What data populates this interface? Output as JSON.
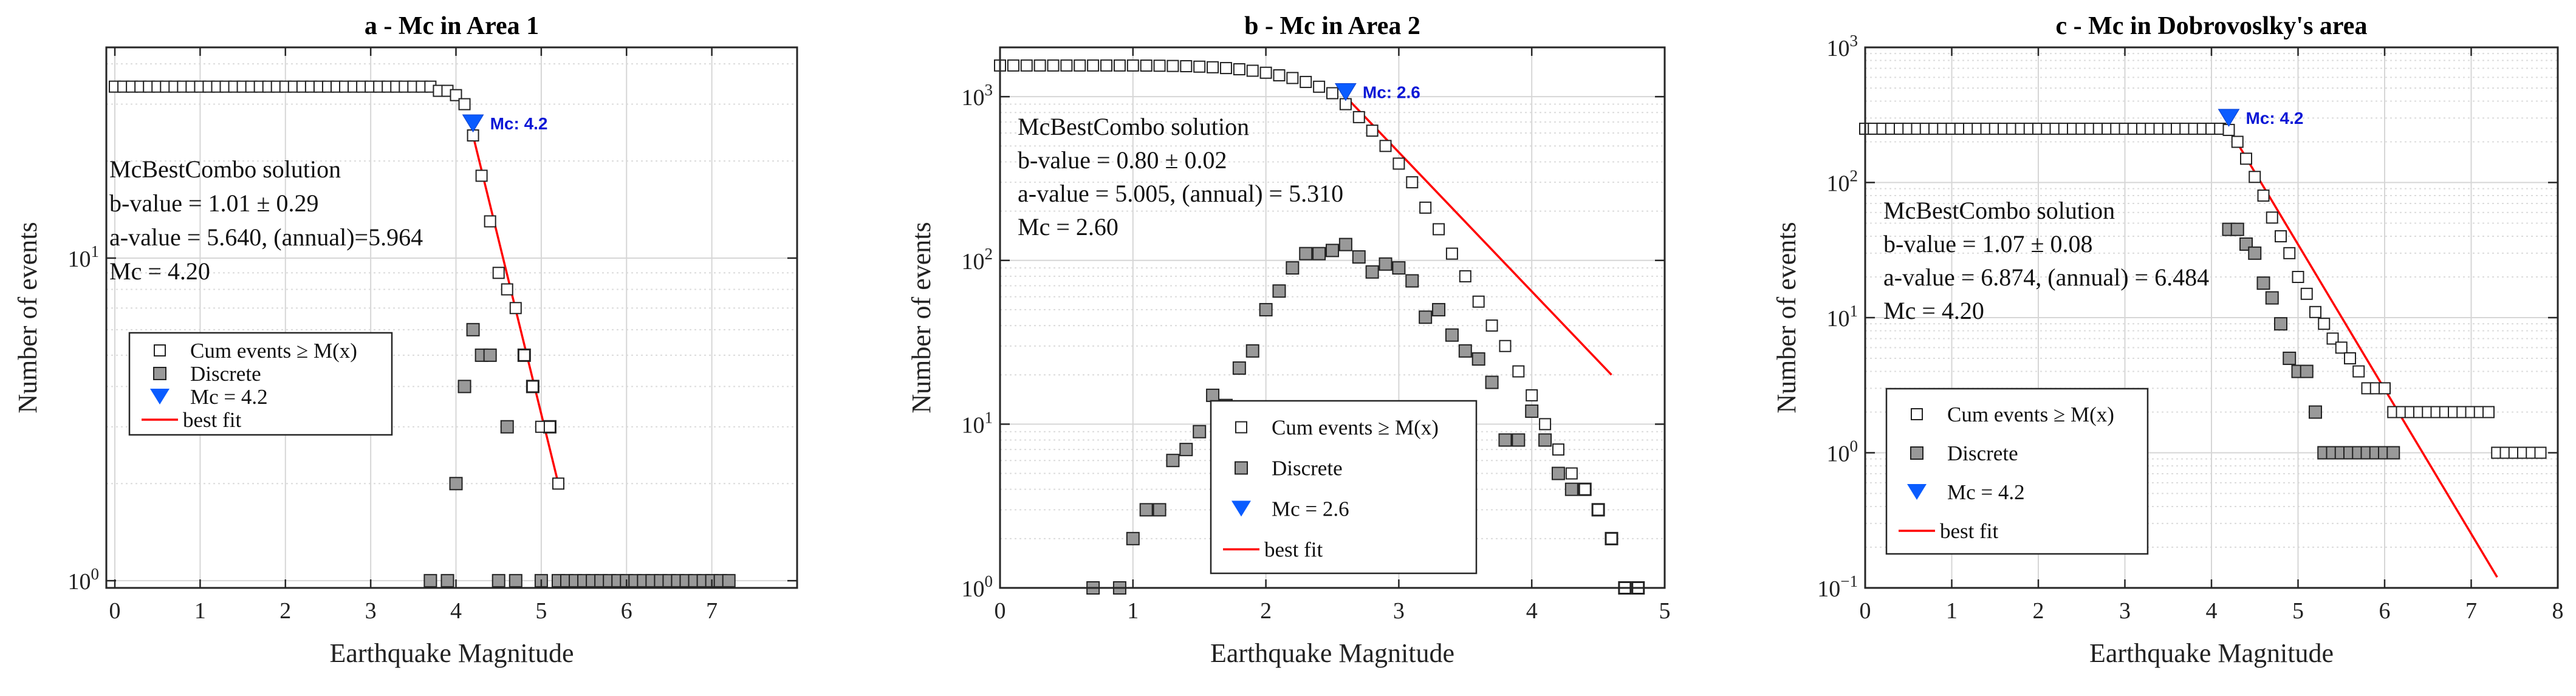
{
  "chart_data": [
    {
      "type": "scatter",
      "title": "a - Mc in Area 1",
      "xlabel": "Earthquake Magnitude",
      "ylabel": "Number of events",
      "xlim": [
        -0.1,
        8.0
      ],
      "xticks": [
        0,
        1,
        2,
        3,
        4,
        5,
        6,
        7
      ],
      "yscale": "log",
      "ylim": [
        0.95,
        45
      ],
      "yticks": [
        1,
        10
      ],
      "ytick_labels": [
        {
          "base": "10",
          "exp": "0"
        },
        {
          "base": "10",
          "exp": "1"
        }
      ],
      "grid": true,
      "series": [
        {
          "name": "Cum events ≥ M(x)",
          "marker": "open-square",
          "x": [
            0.0,
            0.1,
            0.2,
            0.3,
            0.4,
            0.5,
            0.6,
            0.7,
            0.8,
            0.9,
            1.0,
            1.1,
            1.2,
            1.3,
            1.4,
            1.5,
            1.6,
            1.7,
            1.8,
            1.9,
            2.0,
            2.1,
            2.2,
            2.3,
            2.4,
            2.5,
            2.6,
            2.7,
            2.8,
            2.9,
            3.0,
            3.1,
            3.2,
            3.3,
            3.4,
            3.5,
            3.6,
            3.7,
            3.8,
            3.9,
            4.0,
            4.1,
            4.2,
            4.3,
            4.4,
            4.5,
            4.6,
            4.7,
            4.8,
            4.9,
            5.0,
            5.1,
            5.2
          ],
          "y": [
            34,
            34,
            34,
            34,
            34,
            34,
            34,
            34,
            34,
            34,
            34,
            34,
            34,
            34,
            34,
            34,
            34,
            34,
            34,
            34,
            34,
            34,
            34,
            34,
            34,
            34,
            34,
            34,
            34,
            34,
            34,
            34,
            34,
            34,
            34,
            34,
            34,
            34,
            33,
            33,
            32,
            30,
            24,
            18,
            13,
            9,
            8,
            7,
            5,
            4,
            3,
            3,
            2
          ]
        },
        {
          "name": "Discrete",
          "marker": "filled-square",
          "x": [
            3.7,
            3.9,
            4.0,
            4.1,
            4.2,
            4.3,
            4.4,
            4.5,
            4.6,
            4.7,
            4.8,
            4.9,
            5.0,
            5.1,
            5.2,
            5.3,
            5.4,
            5.5,
            5.6,
            5.7,
            5.8,
            5.9,
            6.0,
            6.1,
            6.2,
            6.3,
            6.4,
            6.5,
            6.6,
            6.7,
            6.8,
            6.9,
            7.0,
            7.1,
            7.2
          ],
          "y": [
            1,
            1,
            2,
            4,
            6,
            5,
            5,
            1,
            3,
            1,
            5,
            4,
            1,
            3,
            1,
            1,
            1,
            1,
            1,
            1,
            1,
            1,
            1,
            1,
            1,
            1,
            1,
            1,
            1,
            1,
            1,
            1,
            1,
            1,
            1
          ]
        }
      ],
      "mc": {
        "x": 4.2,
        "label": "Mc: 4.2"
      },
      "best_fit": {
        "x": [
          4.2,
          5.2
        ],
        "y": [
          24,
          2
        ]
      },
      "annotation": [
        "McBestCombo solution",
        "b-value = 1.01 ± 0.29",
        "a-value = 5.640, (annual)=5.964",
        "Mc = 4.20"
      ],
      "legend": [
        "Cum events ≥ M(x)",
        "Discrete",
        "Mc = 4.2",
        "best fit"
      ]
    },
    {
      "type": "scatter",
      "title": "b - Mc in Area 2",
      "xlabel": "Earthquake Magnitude",
      "ylabel": "Number of events",
      "xlim": [
        0,
        5
      ],
      "xticks": [
        0,
        1,
        2,
        3,
        4,
        5
      ],
      "yscale": "log",
      "ylim": [
        1,
        2000
      ],
      "yticks": [
        1,
        10,
        100,
        1000
      ],
      "ytick_labels": [
        {
          "base": "10",
          "exp": "0"
        },
        {
          "base": "10",
          "exp": "1"
        },
        {
          "base": "10",
          "exp": "2"
        },
        {
          "base": "10",
          "exp": "3"
        }
      ],
      "grid": true,
      "series": [
        {
          "name": "Cum events ≥ M(x)",
          "marker": "open-square",
          "x": [
            0.0,
            0.1,
            0.2,
            0.3,
            0.4,
            0.5,
            0.6,
            0.7,
            0.8,
            0.9,
            1.0,
            1.1,
            1.2,
            1.3,
            1.4,
            1.5,
            1.6,
            1.7,
            1.8,
            1.9,
            2.0,
            2.1,
            2.2,
            2.3,
            2.4,
            2.5,
            2.6,
            2.7,
            2.8,
            2.9,
            3.0,
            3.1,
            3.2,
            3.3,
            3.4,
            3.5,
            3.6,
            3.7,
            3.8,
            3.9,
            4.0,
            4.1,
            4.2,
            4.3,
            4.4,
            4.5,
            4.6,
            4.7,
            4.8
          ],
          "y": [
            1550,
            1550,
            1550,
            1550,
            1550,
            1550,
            1550,
            1550,
            1550,
            1550,
            1550,
            1548,
            1545,
            1540,
            1535,
            1525,
            1512,
            1495,
            1470,
            1440,
            1400,
            1350,
            1300,
            1230,
            1150,
            1050,
            900,
            750,
            620,
            500,
            390,
            300,
            210,
            155,
            110,
            80,
            56,
            40,
            30,
            21,
            15,
            10,
            7,
            5,
            4,
            3,
            2,
            1,
            1
          ]
        },
        {
          "name": "Discrete",
          "marker": "filled-square",
          "x": [
            0.7,
            0.9,
            1.0,
            1.1,
            1.2,
            1.3,
            1.4,
            1.5,
            1.6,
            1.7,
            1.8,
            1.9,
            2.0,
            2.1,
            2.2,
            2.3,
            2.4,
            2.5,
            2.6,
            2.7,
            2.8,
            2.9,
            3.0,
            3.1,
            3.2,
            3.3,
            3.4,
            3.5,
            3.6,
            3.7,
            3.8,
            3.9,
            4.0,
            4.1,
            4.2,
            4.3,
            4.4,
            4.5,
            4.6,
            4.7,
            4.8
          ],
          "y": [
            1,
            1,
            2,
            3,
            3,
            6,
            7,
            9,
            15,
            13,
            22,
            28,
            50,
            65,
            90,
            110,
            110,
            115,
            125,
            105,
            85,
            95,
            90,
            75,
            45,
            50,
            35,
            28,
            25,
            18,
            8,
            8,
            12,
            8,
            5,
            4,
            4,
            3,
            2,
            1,
            1
          ]
        }
      ],
      "mc": {
        "x": 2.6,
        "label": "Mc: 2.6"
      },
      "best_fit": {
        "x": [
          2.6,
          4.6
        ],
        "y": [
          1000,
          20
        ]
      },
      "annotation": [
        "McBestCombo solution",
        "b-value = 0.80 ± 0.02",
        "a-value = 5.005, (annual) = 5.310",
        "Mc = 2.60"
      ],
      "legend": [
        "Cum events ≥ M(x)",
        "Discrete",
        "Mc = 2.6",
        "best fit"
      ]
    },
    {
      "type": "scatter",
      "title": "c - Mc in Dobrovoslky's area",
      "xlabel": "Earthquake Magnitude",
      "ylabel": "Number of events",
      "xlim": [
        0,
        8
      ],
      "xticks": [
        0,
        1,
        2,
        3,
        4,
        5,
        6,
        7,
        8
      ],
      "yscale": "log",
      "ylim": [
        0.1,
        1000
      ],
      "yticks": [
        0.1,
        1,
        10,
        100,
        1000
      ],
      "ytick_labels": [
        {
          "base": "10",
          "exp": "−1"
        },
        {
          "base": "10",
          "exp": "0"
        },
        {
          "base": "10",
          "exp": "1"
        },
        {
          "base": "10",
          "exp": "2"
        },
        {
          "base": "10",
          "exp": "3"
        }
      ],
      "grid": true,
      "series": [
        {
          "name": "Cum events ≥ M(x)",
          "marker": "open-square",
          "x": [
            0.0,
            0.1,
            0.2,
            0.3,
            0.4,
            0.5,
            0.6,
            0.7,
            0.8,
            0.9,
            1.0,
            1.1,
            1.2,
            1.3,
            1.4,
            1.5,
            1.6,
            1.7,
            1.8,
            1.9,
            2.0,
            2.1,
            2.2,
            2.3,
            2.4,
            2.5,
            2.6,
            2.7,
            2.8,
            2.9,
            3.0,
            3.1,
            3.2,
            3.3,
            3.4,
            3.5,
            3.6,
            3.7,
            3.8,
            3.9,
            4.0,
            4.1,
            4.2,
            4.3,
            4.4,
            4.5,
            4.6,
            4.7,
            4.8,
            4.9,
            5.0,
            5.1,
            5.2,
            5.3,
            5.4,
            5.5,
            5.6,
            5.7,
            5.8,
            5.9,
            6.0,
            6.1,
            6.2,
            6.3,
            6.4,
            6.5,
            6.6,
            6.7,
            6.8,
            6.9,
            7.0,
            7.1,
            7.2,
            7.3,
            7.4,
            7.5,
            7.6,
            7.7,
            7.8
          ],
          "y": [
            250,
            250,
            250,
            250,
            250,
            250,
            250,
            250,
            250,
            250,
            250,
            250,
            250,
            250,
            250,
            250,
            250,
            250,
            250,
            250,
            250,
            250,
            250,
            250,
            250,
            250,
            250,
            250,
            250,
            250,
            250,
            250,
            250,
            250,
            250,
            250,
            250,
            250,
            250,
            250,
            250,
            250,
            245,
            200,
            150,
            110,
            80,
            55,
            40,
            30,
            20,
            15,
            11,
            9,
            7,
            6,
            5,
            4,
            3,
            3,
            3,
            2,
            2,
            2,
            2,
            2,
            2,
            2,
            2,
            2,
            2,
            2,
            2,
            1,
            1,
            1,
            1,
            1,
            1
          ]
        },
        {
          "name": "Discrete",
          "marker": "filled-square",
          "x": [
            4.2,
            4.3,
            4.4,
            4.5,
            4.6,
            4.7,
            4.8,
            4.9,
            5.0,
            5.1,
            5.2,
            5.3,
            5.4,
            5.5,
            5.6,
            5.7,
            5.8,
            5.9,
            6.0,
            6.1
          ],
          "y": [
            45,
            45,
            35,
            30,
            18,
            14,
            9,
            5,
            4,
            4,
            2,
            1,
            1,
            1,
            1,
            1,
            1,
            1,
            1,
            1
          ]
        }
      ],
      "mc": {
        "x": 4.2,
        "label": "Mc: 4.2"
      },
      "best_fit": {
        "x": [
          4.2,
          7.3
        ],
        "y": [
          250,
          0.12
        ]
      },
      "annotation": [
        "McBestCombo solution",
        "b-value = 1.07 ± 0.08",
        "a-value = 6.874, (annual) = 6.484",
        "Mc = 4.20"
      ],
      "legend": [
        "Cum events ≥ M(x)",
        "Discrete",
        "Mc = 4.2",
        "best fit"
      ]
    }
  ]
}
